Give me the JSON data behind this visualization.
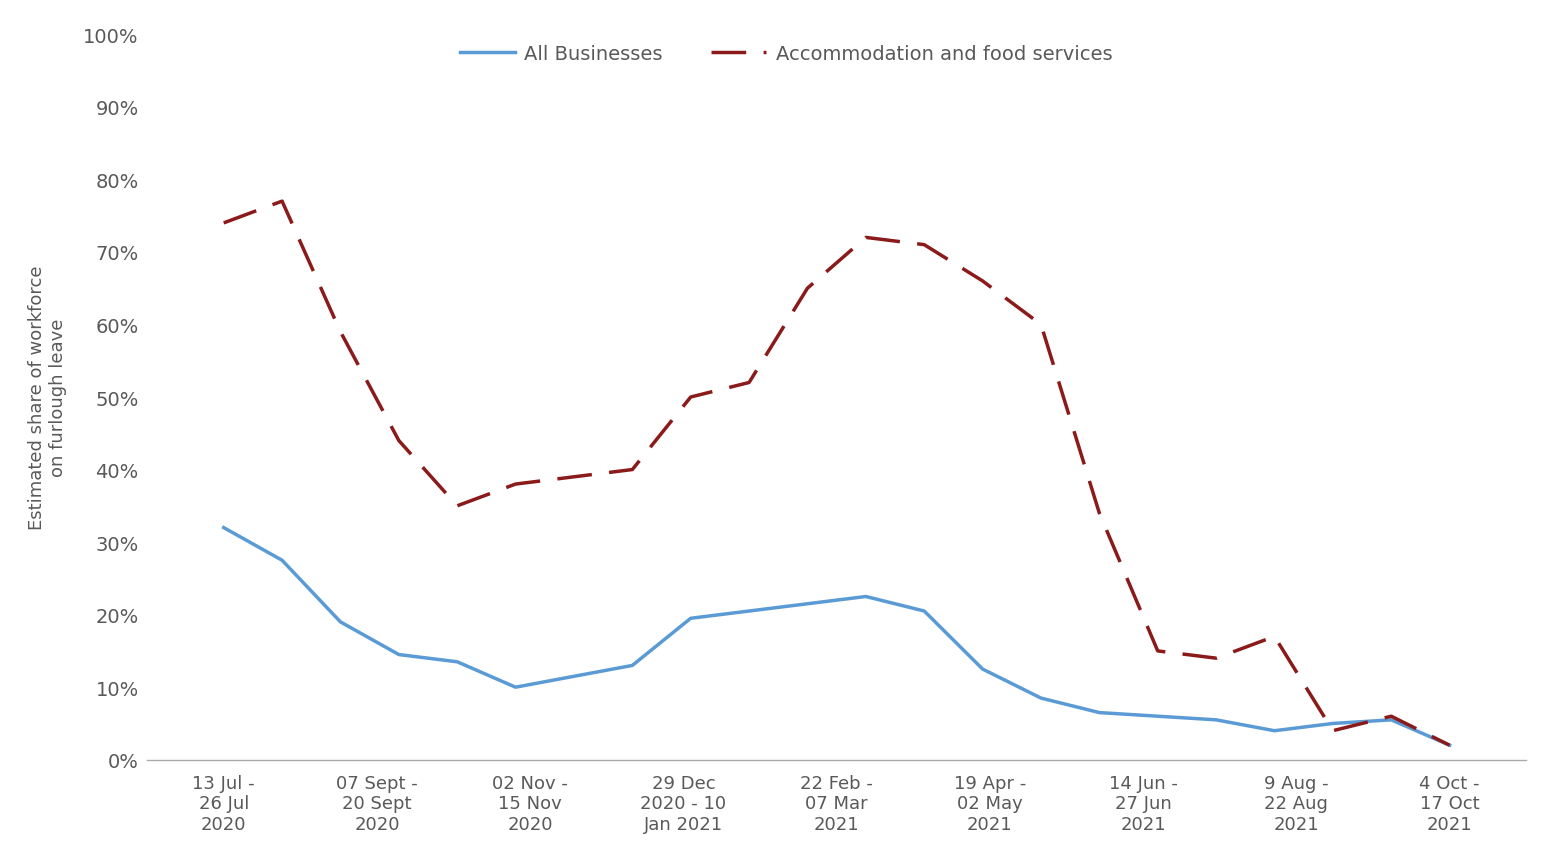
{
  "x_labels": [
    "13 Jul -\n26 Jul\n2020",
    "07 Sept -\n20 Sept\n2020",
    "02 Nov -\n15 Nov\n2020",
    "29 Dec\n2020 - 10\nJan 2021",
    "22 Feb -\n07 Mar\n2021",
    "19 Apr -\n02 May\n2021",
    "14 Jun -\n27 Jun\n2021",
    "9 Aug -\n22 Aug\n2021",
    "4 Oct -\n17 Oct\n2021"
  ],
  "all_businesses": [
    0.32,
    0.275,
    0.19,
    0.145,
    0.135,
    0.1,
    0.115,
    0.13,
    0.195,
    0.205,
    0.215,
    0.225,
    0.205,
    0.125,
    0.085,
    0.065,
    0.06,
    0.055,
    0.04,
    0.05,
    0.055,
    0.02
  ],
  "accommodation": [
    0.74,
    0.77,
    0.59,
    0.44,
    0.35,
    0.38,
    0.39,
    0.4,
    0.5,
    0.52,
    0.65,
    0.72,
    0.71,
    0.66,
    0.6,
    0.34,
    0.15,
    0.14,
    0.17,
    0.04,
    0.06,
    0.02
  ],
  "all_businesses_color": "#5B9BD5",
  "accommodation_color": "#8B1A1A",
  "ylabel_line1": "Estimated share of workforce",
  "ylabel_line2": "on furlough leave",
  "ylim": [
    0,
    1.0
  ],
  "yticks": [
    0.0,
    0.1,
    0.2,
    0.3,
    0.4,
    0.5,
    0.6,
    0.7,
    0.8,
    0.9,
    1.0
  ],
  "legend_all": "All Businesses",
  "legend_acc": "Accommodation and food services",
  "background_color": "#ffffff",
  "num_points": 22,
  "tick_color": "#595959",
  "spine_color": "#aaaaaa"
}
